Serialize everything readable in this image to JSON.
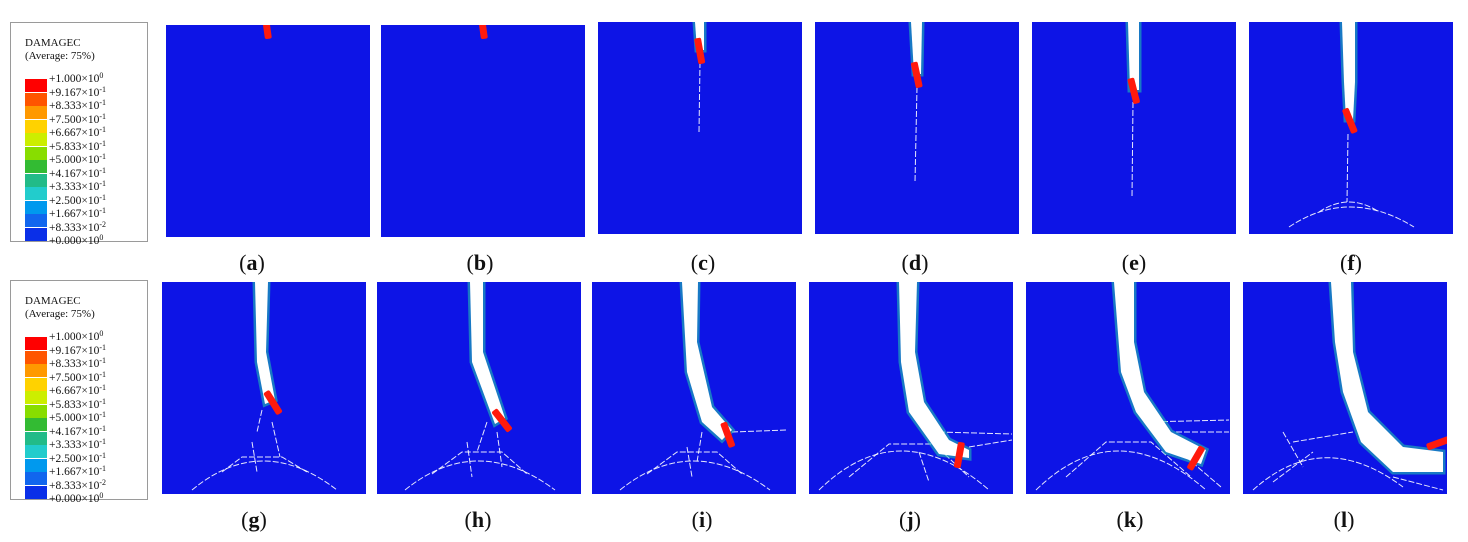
{
  "legends": [
    {
      "title": "DAMAGEC",
      "subtitle": "(Average: 75%)",
      "levels": [
        {
          "mant": "+1.000",
          "exp": "0"
        },
        {
          "mant": "+9.167",
          "exp": "-1"
        },
        {
          "mant": "+8.333",
          "exp": "-1"
        },
        {
          "mant": "+7.500",
          "exp": "-1"
        },
        {
          "mant": "+6.667",
          "exp": "-1"
        },
        {
          "mant": "+5.833",
          "exp": "-1"
        },
        {
          "mant": "+5.000",
          "exp": "-1"
        },
        {
          "mant": "+4.167",
          "exp": "-1"
        },
        {
          "mant": "+3.333",
          "exp": "-1"
        },
        {
          "mant": "+2.500",
          "exp": "-1"
        },
        {
          "mant": "+1.667",
          "exp": "-1"
        },
        {
          "mant": "+8.333",
          "exp": "-2"
        },
        {
          "mant": "+0.000",
          "exp": "0"
        }
      ]
    },
    {
      "title": "DAMAGEC",
      "subtitle": "(Average: 75%)",
      "levels": [
        {
          "mant": "+1.000",
          "exp": "0"
        },
        {
          "mant": "+9.167",
          "exp": "-1"
        },
        {
          "mant": "+8.333",
          "exp": "-1"
        },
        {
          "mant": "+7.500",
          "exp": "-1"
        },
        {
          "mant": "+6.667",
          "exp": "-1"
        },
        {
          "mant": "+5.833",
          "exp": "-1"
        },
        {
          "mant": "+5.000",
          "exp": "-1"
        },
        {
          "mant": "+4.167",
          "exp": "-1"
        },
        {
          "mant": "+3.333",
          "exp": "-1"
        },
        {
          "mant": "+2.500",
          "exp": "-1"
        },
        {
          "mant": "+1.667",
          "exp": "-1"
        },
        {
          "mant": "+8.333",
          "exp": "-2"
        },
        {
          "mant": "+0.000",
          "exp": "0"
        }
      ]
    }
  ],
  "colors": {
    "scale": [
      "#ff0000",
      "#ff5500",
      "#ff9900",
      "#ffd200",
      "#ccee00",
      "#88dd00",
      "#33bb33",
      "#22bb88",
      "#22cccc",
      "#0099ee",
      "#1166ee",
      "#0a2fe8"
    ],
    "field": "#0d14e6",
    "cutter": "#ff1a0d",
    "crack": "#ffffff",
    "damage_fringe": "#22ccaa"
  },
  "panels": [
    {
      "label": "a"
    },
    {
      "label": "b"
    },
    {
      "label": "c"
    },
    {
      "label": "d"
    },
    {
      "label": "e"
    },
    {
      "label": "f"
    },
    {
      "label": "g"
    },
    {
      "label": "h"
    },
    {
      "label": "i"
    },
    {
      "label": "j"
    },
    {
      "label": "k"
    },
    {
      "label": "l"
    }
  ]
}
